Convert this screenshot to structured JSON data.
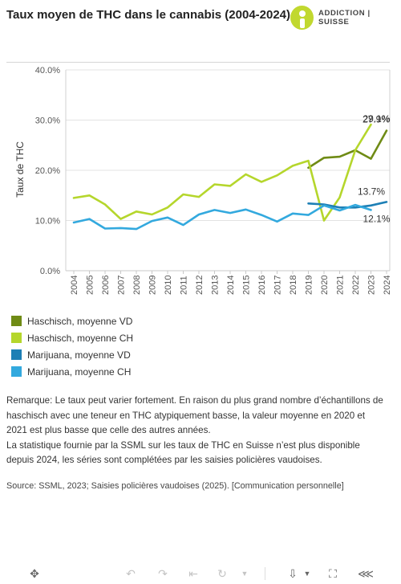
{
  "header": {
    "title": "Taux moyen de THC dans le cannabis (2004-2024)",
    "logo_text": "ADDICTION | SUISSE"
  },
  "colors": {
    "hasch_vd": "#6f8b15",
    "hasch_ch": "#b5d62c",
    "mari_vd": "#1d7fb5",
    "mari_ch": "#33a9de",
    "brand": "#c1d82f"
  },
  "chart_data": {
    "type": "line",
    "title": "Taux moyen de THC dans le cannabis (2004-2024)",
    "xlabel": "",
    "ylabel": "Taux de THC",
    "ylim": [
      0,
      40
    ],
    "yticks": [
      "0.0%",
      "10.0%",
      "20.0%",
      "30.0%",
      "40.0%"
    ],
    "x": [
      2004,
      2005,
      2006,
      2007,
      2008,
      2009,
      2010,
      2011,
      2012,
      2013,
      2014,
      2015,
      2016,
      2017,
      2018,
      2019,
      2020,
      2021,
      2022,
      2023,
      2024
    ],
    "legend_position": "bottom-left",
    "series": [
      {
        "name": "Haschisch, moyenne VD",
        "color_key": "hasch_vd",
        "values": [
          null,
          null,
          null,
          null,
          null,
          null,
          null,
          null,
          null,
          null,
          null,
          null,
          null,
          null,
          null,
          20.5,
          22.5,
          22.7,
          24.0,
          22.3,
          27.9
        ]
      },
      {
        "name": "Haschisch, moyenne CH",
        "color_key": "hasch_ch",
        "values": [
          14.5,
          15.0,
          13.2,
          10.3,
          11.8,
          11.2,
          12.6,
          15.2,
          14.7,
          17.2,
          16.9,
          19.2,
          17.7,
          19.0,
          20.9,
          21.9,
          10.0,
          14.6,
          24.0,
          29.1,
          null
        ]
      },
      {
        "name": "Marijuana, moyenne VD",
        "color_key": "mari_vd",
        "values": [
          null,
          null,
          null,
          null,
          null,
          null,
          null,
          null,
          null,
          null,
          null,
          null,
          null,
          null,
          null,
          13.4,
          13.2,
          12.6,
          12.6,
          13.0,
          13.7
        ]
      },
      {
        "name": "Marijuana, moyenne CH",
        "color_key": "mari_ch",
        "values": [
          9.6,
          10.3,
          8.4,
          8.5,
          8.3,
          9.9,
          10.6,
          9.1,
          11.2,
          12.1,
          11.5,
          12.2,
          11.1,
          9.8,
          11.4,
          11.1,
          13.0,
          12.0,
          13.1,
          12.1,
          null
        ]
      }
    ],
    "annotations": [
      {
        "text": "29.1%",
        "series": "Haschisch, moyenne CH",
        "year": 2023,
        "value": 29.1
      },
      {
        "text": "27.9%",
        "series": "Haschisch, moyenne VD",
        "year": 2024,
        "value": 27.9
      },
      {
        "text": "13.7%",
        "series": "Marijuana, moyenne VD",
        "year": 2024,
        "value": 13.7
      },
      {
        "text": "12.1%",
        "series": "Marijuana, moyenne CH",
        "year": 2023,
        "value": 12.1
      }
    ]
  },
  "legend": [
    {
      "label": "Haschisch, moyenne VD",
      "color_key": "hasch_vd"
    },
    {
      "label": "Haschisch, moyenne CH",
      "color_key": "hasch_ch"
    },
    {
      "label": "Marijuana, moyenne VD",
      "color_key": "mari_vd"
    },
    {
      "label": "Marijuana, moyenne CH",
      "color_key": "mari_ch"
    }
  ],
  "notes": {
    "remark_1": "Remarque: Le taux peut varier fortement. En raison du plus grand nombre d’échantillons de haschisch avec une teneur en THC atypiquement basse, la valeur moyenne en 2020 et 2021 est plus basse que celle des autres années.",
    "remark_2": "La statistique fournie par la SSML sur les taux de THC en Suisse n’est plus disponible depuis 2024, les séries sont complétées par les saisies policières vaudoises.",
    "source": "Source: SSML, 2023; Saisies policières vaudoises (2025). [Communication personnelle]"
  },
  "toolbar": {
    "icons": [
      "move-icon",
      "undo-icon",
      "redo-icon",
      "revert-icon",
      "reset-icon",
      "download-icon",
      "fullscreen-icon",
      "share-icon"
    ]
  }
}
